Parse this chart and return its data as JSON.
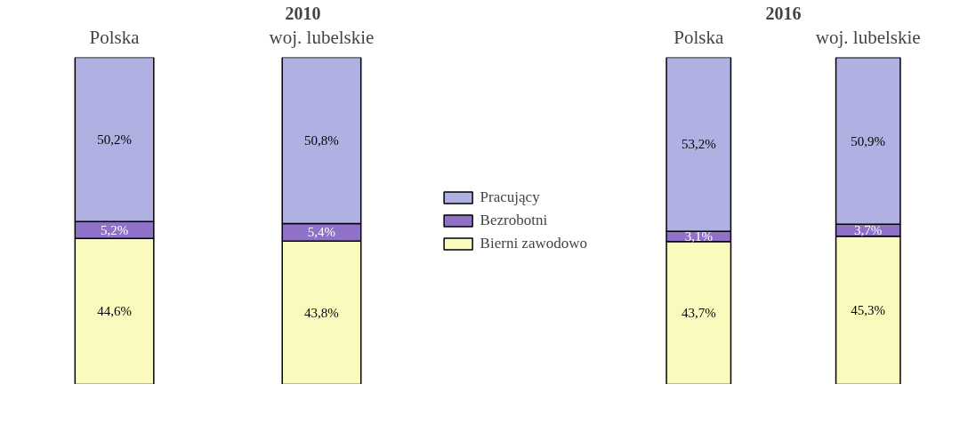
{
  "chart_data": [
    {
      "type": "bar",
      "title": "2010",
      "stacked": true,
      "categories": [
        "Polska",
        "woj. lubelskie"
      ],
      "legend": "right",
      "series": [
        {
          "name": "Bierni zawodowo",
          "color": "#fafabe",
          "values": [
            44.6,
            43.8
          ],
          "value_labels": [
            "44,6%",
            "43,8%"
          ]
        },
        {
          "name": "Bezrobotni",
          "color": "#8f72c8",
          "values": [
            5.2,
            5.4
          ],
          "value_labels": [
            "5,2%",
            "5,4%"
          ]
        },
        {
          "name": "Pracujący",
          "color": "#b0b0e2",
          "values": [
            50.2,
            50.8
          ],
          "value_labels": [
            "50,2%",
            "50,8%"
          ]
        }
      ]
    },
    {
      "type": "bar",
      "title": "2016",
      "stacked": true,
      "categories": [
        "Polska",
        "woj. lubelskie"
      ],
      "series": [
        {
          "color": "#fafabe",
          "values": [
            43.7,
            45.3
          ],
          "value_labels": [
            "43,7%",
            "45,3%"
          ]
        },
        {
          "color": "#8f72c8",
          "values": [
            3.1,
            3.7
          ],
          "value_labels": [
            "3,1%",
            "3,7%"
          ]
        },
        {
          "color": "#b0b0e2",
          "values": [
            53.2,
            50.9
          ],
          "value_labels": [
            "53,2%",
            "50,9%"
          ]
        }
      ]
    }
  ]
}
